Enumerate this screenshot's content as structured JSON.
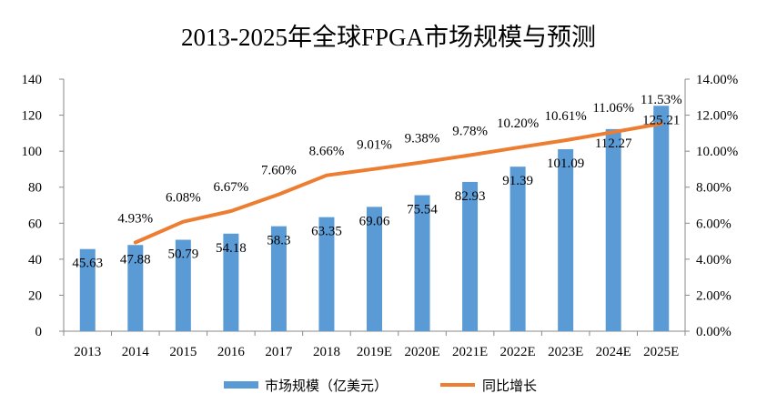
{
  "chart_data": {
    "type": "bar",
    "title": "2013-2025年全球FPGA市场规模与预测",
    "categories": [
      "2013",
      "2014",
      "2015",
      "2016",
      "2017",
      "2018",
      "2019E",
      "2020E",
      "2021E",
      "2022E",
      "2023E",
      "2024E",
      "2025E"
    ],
    "series": [
      {
        "name": "市场规模（亿美元）",
        "type": "bar",
        "axis": "left",
        "color": "#5B9BD5",
        "values": [
          45.63,
          47.88,
          50.79,
          54.18,
          58.3,
          63.35,
          69.06,
          75.54,
          82.93,
          91.39,
          101.09,
          112.27,
          125.21
        ],
        "labels": [
          "45.63",
          "47.88",
          "50.79",
          "54.18",
          "58.3",
          "63.35",
          "69.06",
          "75.54",
          "82.93",
          "91.39",
          "101.09",
          "112.27",
          "125.21"
        ]
      },
      {
        "name": "同比增长",
        "type": "line",
        "axis": "right",
        "color": "#ED7D31",
        "values": [
          null,
          4.93,
          6.08,
          6.67,
          7.6,
          8.66,
          9.01,
          9.38,
          9.78,
          10.2,
          10.61,
          11.06,
          11.53
        ],
        "labels": [
          "",
          "4.93%",
          "6.08%",
          "6.67%",
          "7.60%",
          "8.66%",
          "9.01%",
          "9.38%",
          "9.78%",
          "10.20%",
          "10.61%",
          "11.06%",
          "11.53%"
        ]
      }
    ],
    "y_left": {
      "min": 0,
      "max": 140,
      "ticks": [
        0,
        20,
        40,
        60,
        80,
        100,
        120,
        140
      ],
      "tick_labels": [
        "0",
        "20",
        "40",
        "60",
        "80",
        "100",
        "120",
        "140"
      ]
    },
    "y_right": {
      "min": 0,
      "max": 14,
      "ticks": [
        0,
        2,
        4,
        6,
        8,
        10,
        12,
        14
      ],
      "tick_labels": [
        "0.00%",
        "2.00%",
        "4.00%",
        "6.00%",
        "8.00%",
        "10.00%",
        "12.00%",
        "14.00%"
      ]
    },
    "grid": false,
    "legend": {
      "position": "bottom",
      "entries": [
        "市场规模（亿美元）",
        "同比增长"
      ]
    }
  }
}
